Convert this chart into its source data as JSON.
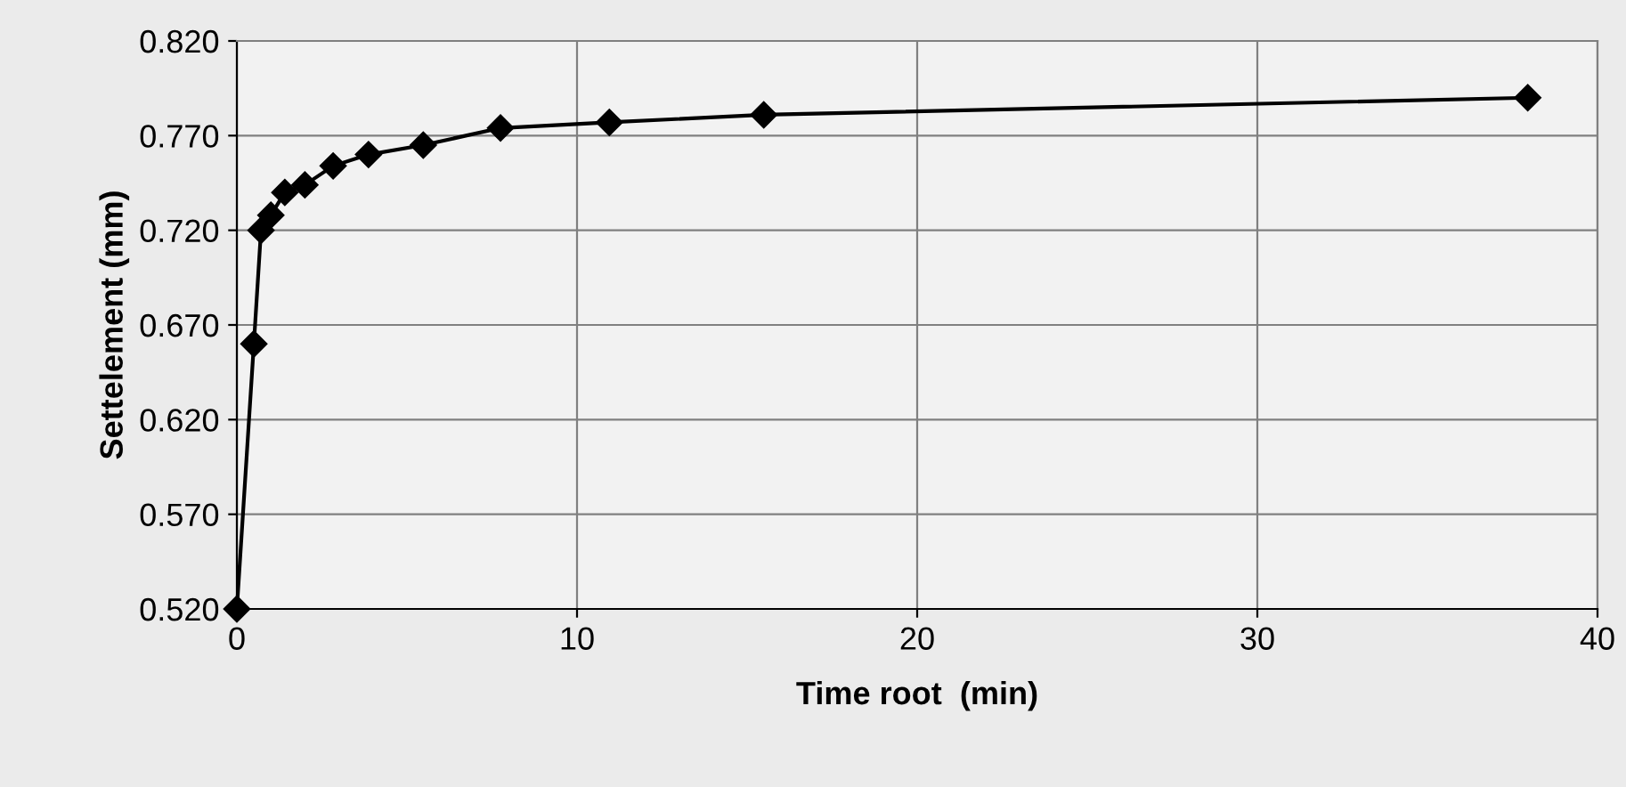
{
  "chart_data": {
    "type": "line",
    "xlabel": "Time root  (min)",
    "ylabel": "Settelement (mm)",
    "x": [
      0,
      0.5,
      0.71,
      1,
      1.41,
      2,
      2.83,
      3.87,
      5.48,
      7.75,
      10.95,
      15.49,
      37.95
    ],
    "series": [
      {
        "color": "#000000",
        "values": [
          0.52,
          0.66,
          0.72,
          0.728,
          0.74,
          0.744,
          0.754,
          0.76,
          0.765,
          0.774,
          0.777,
          0.781,
          0.79
        ]
      }
    ],
    "xlim": [
      0,
      40
    ],
    "xticks": [
      0,
      10,
      20,
      30,
      40
    ],
    "ylim": [
      0.52,
      0.82
    ],
    "yticks": [
      {
        "value": 0.52,
        "label": "0.520"
      },
      {
        "value": 0.57,
        "label": "0.570"
      },
      {
        "value": 0.62,
        "label": "0.620"
      },
      {
        "value": 0.67,
        "label": "0.670"
      },
      {
        "value": 0.72,
        "label": "0.720"
      },
      {
        "value": 0.77,
        "label": "0.770"
      },
      {
        "value": 0.82,
        "label": "0.820"
      }
    ],
    "grid": true,
    "marker": "diamond",
    "line_style": "solid"
  }
}
